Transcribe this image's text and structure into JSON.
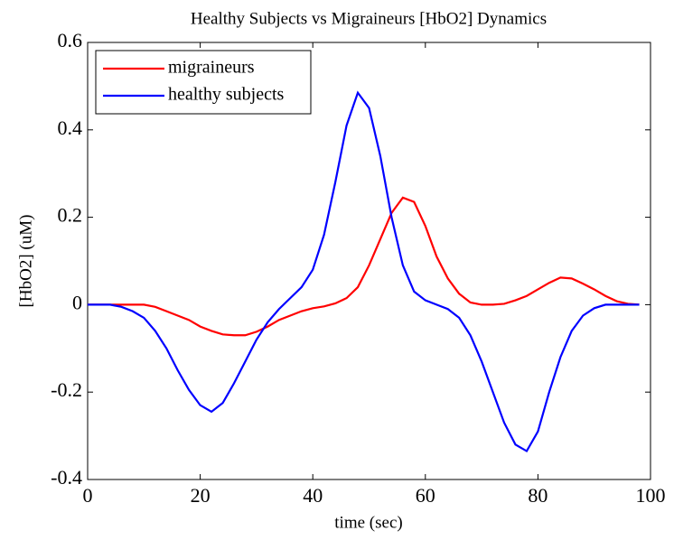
{
  "chart_data": {
    "type": "line",
    "title": "Healthy Subjects vs Migraineurs [HbO2] Dynamics",
    "x_label": "time (sec)",
    "y_label": "[HbO2] (uM)",
    "x": [
      0,
      2,
      4,
      6,
      8,
      10,
      12,
      14,
      16,
      18,
      20,
      22,
      24,
      26,
      28,
      30,
      32,
      34,
      36,
      38,
      40,
      42,
      44,
      46,
      48,
      50,
      52,
      54,
      56,
      58,
      60,
      62,
      64,
      66,
      68,
      70,
      72,
      74,
      76,
      78,
      80,
      82,
      84,
      86,
      88,
      90,
      92,
      94,
      96,
      98
    ],
    "series": [
      {
        "name": "migraineurs",
        "color": "#ff0000",
        "values": [
          0,
          0,
          0,
          0,
          0,
          0,
          -0.005,
          -0.015,
          -0.025,
          -0.035,
          -0.05,
          -0.06,
          -0.068,
          -0.07,
          -0.07,
          -0.062,
          -0.05,
          -0.035,
          -0.025,
          -0.015,
          -0.008,
          -0.004,
          0.003,
          0.015,
          0.04,
          0.09,
          0.15,
          0.21,
          0.245,
          0.235,
          0.18,
          0.11,
          0.06,
          0.025,
          0.005,
          0,
          0,
          0.002,
          0.01,
          0.02,
          0.035,
          0.05,
          0.062,
          0.06,
          0.048,
          0.035,
          0.02,
          0.008,
          0.002,
          0
        ]
      },
      {
        "name": "healthy subjects",
        "color": "#0000ff",
        "values": [
          0,
          0,
          0,
          -0.005,
          -0.015,
          -0.03,
          -0.06,
          -0.1,
          -0.15,
          -0.195,
          -0.23,
          -0.245,
          -0.225,
          -0.18,
          -0.13,
          -0.08,
          -0.04,
          -0.01,
          0.015,
          0.04,
          0.08,
          0.16,
          0.28,
          0.41,
          0.485,
          0.45,
          0.34,
          0.2,
          0.09,
          0.03,
          0.01,
          0,
          -0.01,
          -0.03,
          -0.07,
          -0.13,
          -0.2,
          -0.27,
          -0.32,
          -0.335,
          -0.29,
          -0.2,
          -0.12,
          -0.06,
          -0.025,
          -0.008,
          0,
          0,
          0,
          0
        ]
      }
    ],
    "xlim": [
      0,
      100
    ],
    "xticks": [
      0,
      20,
      40,
      60,
      80,
      100
    ],
    "ylim": [
      -0.4,
      0.6
    ],
    "yticks": [
      -0.4,
      -0.2,
      0,
      0.2,
      0.4,
      0.6
    ],
    "grid": false,
    "legend": "upper left"
  }
}
